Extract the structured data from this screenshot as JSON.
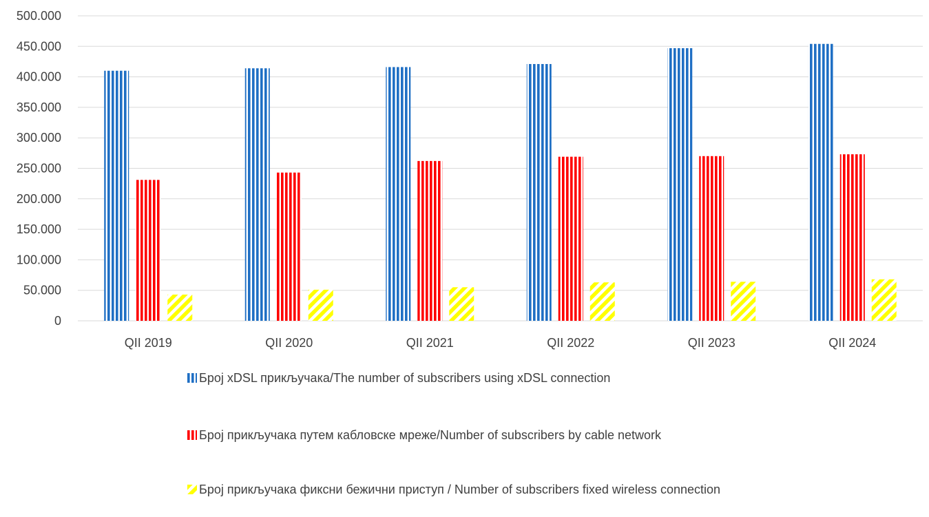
{
  "chart_data": {
    "type": "bar",
    "categories": [
      "QII 2019",
      "QII 2020",
      "QII 2021",
      "QII 2022",
      "QII 2023",
      "QII 2024"
    ],
    "series": [
      {
        "name": "Број  xDSL прикључака/The number of subscribers using  xDSL connection",
        "values": [
          410000,
          414000,
          416000,
          421000,
          447000,
          454000
        ],
        "color": "#1f6fc4",
        "pattern": "vertical-stripes"
      },
      {
        "name": "Број прикључака путем  кабловске мреже/Number of subscribers by cable network",
        "values": [
          231000,
          243000,
          262000,
          269000,
          270000,
          273000
        ],
        "color": "#ff0000",
        "pattern": "vertical-stripes"
      },
      {
        "name": "Број прикључака фиксни бежични приступ / Number of subscribers fixed wireless connection",
        "values": [
          43000,
          51000,
          55000,
          63000,
          64000,
          68000
        ],
        "color": "#ffff00",
        "pattern": "diagonal-stripes"
      }
    ],
    "yticks": [
      "0",
      "50.000",
      "100.000",
      "150.000",
      "200.000",
      "250.000",
      "300.000",
      "350.000",
      "400.000",
      "450.000",
      "500.000"
    ],
    "ylim": [
      0,
      500000
    ],
    "grid": true,
    "legend_position": "bottom",
    "title": "",
    "xlabel": "",
    "ylabel": ""
  }
}
